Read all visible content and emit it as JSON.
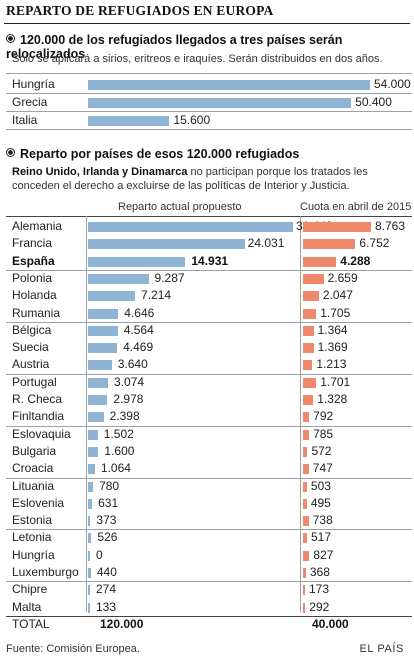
{
  "title": "REPARTO DE REFUGIADOS EN EUROPA",
  "section1": {
    "heading": "120.000 de los refugiados llegados a tres países serán relocalizados",
    "subtitle": "Solo se aplicará a sirios, eritreos e iraquíes. Serán distribuidos en dos años."
  },
  "section2": {
    "heading": "Reparto por países de esos 120.000 refugiados",
    "note_bold": "Reino Unido, Irlanda y Dinamarca",
    "note_line1_rest": " no participan porque los tratados les",
    "note_line2": "conceden el derecho a excluirse de las políticas de Interior y Justicia.",
    "col_actual": "Reparto actual propuesto",
    "col_cuota": "Cuota en abril de 2015",
    "total_label": "TOTAL",
    "total_actual": "120.000",
    "total_cuota": "40.000"
  },
  "footer": {
    "source": "Fuente: Comisión Europea.",
    "brand": "EL PAÍS"
  },
  "colors": {
    "blue": "#8fb3d3",
    "orange": "#ee8a6b"
  },
  "chart_data": [
    {
      "type": "bar",
      "orientation": "horizontal",
      "categories": [
        "Hungría",
        "Grecia",
        "Italia"
      ],
      "values": [
        54000,
        50400,
        15600
      ],
      "labels": [
        "54.000",
        "50.400",
        "15.600"
      ]
    },
    {
      "type": "bar",
      "orientation": "horizontal",
      "categories": [
        "Alemania",
        "Francia",
        "España",
        "Polonia",
        "Holanda",
        "Rumania",
        "Bélgica",
        "Suecia",
        "Austria",
        "Portugal",
        "R. Checa",
        "Finltandia",
        "Eslovaquia",
        "Bulgaria",
        "Croacia",
        "Lituania",
        "Eslovenia",
        "Estonia",
        "Letonia",
        "Hungría",
        "Luxemburgo",
        "Chipre",
        "Malta"
      ],
      "groups": [
        3,
        3,
        3,
        3,
        3,
        3,
        3,
        2
      ],
      "highlight": [
        "España"
      ],
      "series": [
        {
          "name": "Reparto actual propuesto",
          "values": [
            31443,
            24031,
            14931,
            9287,
            7214,
            4646,
            4564,
            4469,
            3640,
            3074,
            2978,
            2398,
            1502,
            1600,
            1064,
            780,
            631,
            373,
            526,
            0,
            440,
            274,
            133
          ],
          "labels": [
            "31.443",
            "24.031",
            "14.931",
            "9.287",
            "7.214",
            "4.646",
            "4.564",
            "4.469",
            "3.640",
            "3.074",
            "2.978",
            "2.398",
            "1.502",
            "1.600",
            "1.064",
            "780",
            "631",
            "373",
            "526",
            "0",
            "440",
            "274",
            "133"
          ]
        },
        {
          "name": "Cuota en abril de 2015",
          "values": [
            8763,
            6752,
            4288,
            2659,
            2047,
            1705,
            1364,
            1369,
            1213,
            1701,
            1328,
            792,
            785,
            572,
            747,
            503,
            495,
            738,
            517,
            827,
            368,
            173,
            292
          ],
          "labels": [
            "8.763",
            "6.752",
            "4.288",
            "2.659",
            "2.047",
            "1.705",
            "1.364",
            "1.369",
            "1.213",
            "1.701",
            "1.328",
            "792",
            "785",
            "572",
            "747",
            "503",
            "495",
            "738",
            "517",
            "827",
            "368",
            "173",
            "292"
          ]
        }
      ],
      "total": {
        "label": "TOTAL",
        "values": [
          "120.000",
          "40.000"
        ]
      }
    }
  ]
}
